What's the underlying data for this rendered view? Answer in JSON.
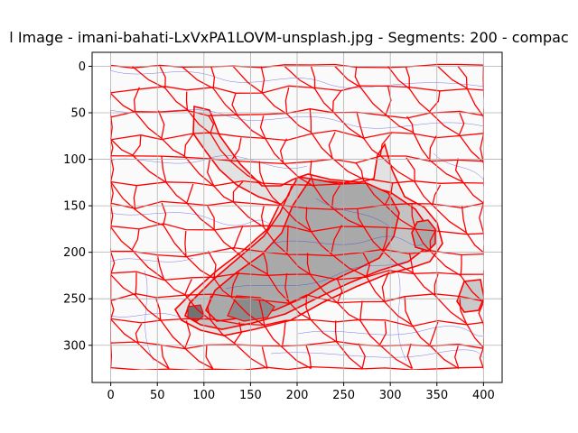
{
  "chart_data": {
    "type": "heatmap",
    "title": "l Image - imani-bahati-LxVxPA1LOVM-unsplash.jpg - Segments: 200 - compac",
    "xlabel": "",
    "ylabel": "",
    "xlim": [
      -20,
      420
    ],
    "ylim": [
      340,
      -15
    ],
    "x_ticks": [
      0,
      50,
      100,
      150,
      200,
      250,
      300,
      350,
      400
    ],
    "y_ticks": [
      0,
      50,
      100,
      150,
      200,
      250,
      300
    ],
    "grid": true,
    "image_extent": {
      "x": [
        0,
        400
      ],
      "y": [
        0,
        325
      ]
    },
    "segments": 200,
    "colors": {
      "background": "#fafafa",
      "boundary": "#ff0000",
      "contour": "#3333dd",
      "light_region": "#e2e2e2",
      "mid_region": "#c3c3c3",
      "dark_region": "#a9a9a9",
      "darkest_region": "#727272"
    }
  }
}
